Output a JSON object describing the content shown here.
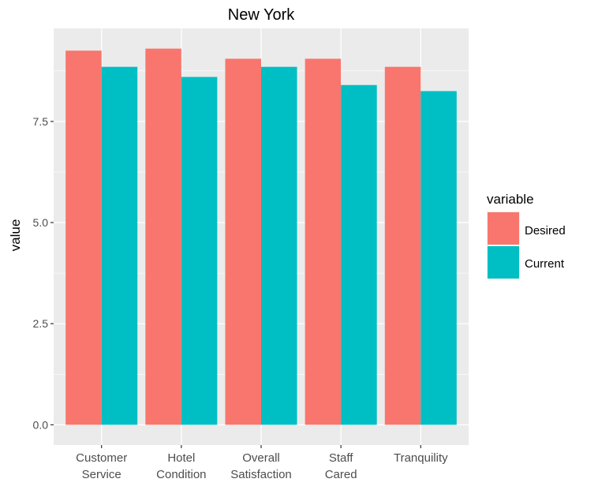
{
  "chart_data": {
    "type": "bar",
    "title": "New York",
    "xlabel": "",
    "ylabel": "value",
    "categories": [
      [
        "Customer",
        "Service"
      ],
      [
        "Hotel",
        "Condition"
      ],
      [
        "Overall",
        "Satisfaction"
      ],
      [
        "Staff",
        "Cared"
      ],
      [
        "Tranquility"
      ]
    ],
    "series": [
      {
        "name": "Desired",
        "color": "#F8766D",
        "values": [
          9.25,
          9.3,
          9.05,
          9.05,
          8.85
        ]
      },
      {
        "name": "Current",
        "color": "#00BFC4",
        "values": [
          8.85,
          8.6,
          8.85,
          8.4,
          8.25
        ]
      }
    ],
    "ylim": [
      -0.5,
      9.8
    ],
    "yticks": [
      0.0,
      2.5,
      5.0,
      7.5
    ],
    "ytick_labels": [
      "0.0",
      "2.5",
      "5.0",
      "7.5"
    ],
    "grid": true,
    "legend": {
      "title": "variable",
      "position": "right"
    }
  }
}
